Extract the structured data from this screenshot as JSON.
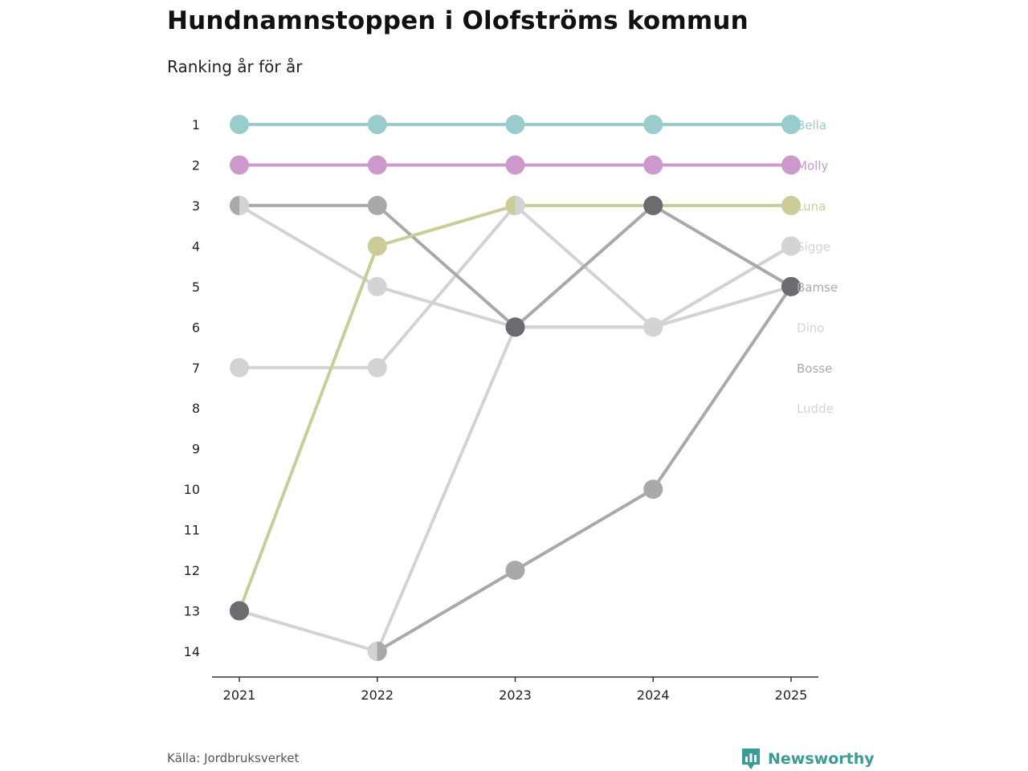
{
  "header": {
    "title": "Hundnamnstoppen i Olofströms kommun",
    "subtitle": "Ranking år för år"
  },
  "footer": {
    "source": "Källa: Jordbruksverket",
    "brand": "Newsworthy",
    "brand_icon": "newsworthy-logo-icon",
    "brand_color": "#3a9b97"
  },
  "chart_data": {
    "type": "line",
    "title": "Hundnamnstoppen i Olofströms kommun",
    "subtitle": "Ranking år för år",
    "xlabel": "",
    "ylabel": "",
    "x": [
      "2021",
      "2022",
      "2023",
      "2024",
      "2025"
    ],
    "y_ticks": [
      1,
      2,
      3,
      4,
      5,
      6,
      7,
      8,
      9,
      10,
      11,
      12,
      13,
      14
    ],
    "ylim": [
      14,
      1
    ],
    "y_inverted": true,
    "grid": false,
    "legend": "direct labels at right end of lines",
    "series": [
      {
        "name": "Ludde",
        "values": [
          3,
          5,
          6,
          6,
          4
        ],
        "color": "#d3d3d3"
      },
      {
        "name": "Dino",
        "values": [
          7,
          7,
          3,
          6,
          5
        ],
        "color": "#d3d3d3"
      },
      {
        "name": "Sigge",
        "values": [
          13,
          14,
          6,
          6,
          4
        ],
        "color": "#d3d3d3"
      },
      {
        "name": "Bosse",
        "values": [
          null,
          14,
          12,
          10,
          5
        ],
        "color": "#a9a9aa"
      },
      {
        "name": "Bamse",
        "values": [
          3,
          3,
          6,
          3,
          5
        ],
        "color": "#a9a9aa"
      },
      {
        "name": "Luna",
        "values": [
          13,
          4,
          3,
          3,
          3
        ],
        "color": "#cccc99"
      },
      {
        "name": "Molly",
        "values": [
          2,
          2,
          2,
          2,
          2
        ],
        "color": "#cc99cc"
      },
      {
        "name": "Bella",
        "values": [
          1,
          1,
          1,
          1,
          1
        ],
        "color": "#99cccc"
      }
    ],
    "end_labels": [
      {
        "name": "Bella",
        "rank": 1,
        "color": "#99cccc"
      },
      {
        "name": "Molly",
        "rank": 2,
        "color": "#cc99cc"
      },
      {
        "name": "Luna",
        "rank": 3,
        "color": "#cccc99"
      },
      {
        "name": "Sigge",
        "rank": 4,
        "color": "#d3d3d3"
      },
      {
        "name": "Bamse",
        "rank": 5,
        "color": "#a9a9aa"
      },
      {
        "name": "Dino",
        "rank": 6,
        "color": "#d3d3d3"
      },
      {
        "name": "Bosse",
        "rank": 7,
        "color": "#a9a9aa"
      },
      {
        "name": "Ludde",
        "rank": 8,
        "color": "#d3d3d3"
      }
    ],
    "extra_points": [
      {
        "year": "2021",
        "rank": 3,
        "colors": [
          "#a9a9aa",
          "#d3d3d3"
        ],
        "split": true
      },
      {
        "year": "2021",
        "rank": 13,
        "colors": [
          "#6b6b70"
        ]
      },
      {
        "year": "2022",
        "rank": 14,
        "colors": [
          "#d3d3d3",
          "#a9a9aa"
        ],
        "split": true
      },
      {
        "year": "2023",
        "rank": 3,
        "colors": [
          "#cccc99",
          "#d3d3d3"
        ],
        "split": true
      },
      {
        "year": "2023",
        "rank": 6,
        "colors": [
          "#6b6b70"
        ]
      },
      {
        "year": "2024",
        "rank": 3,
        "colors": [
          "#6b6b70"
        ]
      },
      {
        "year": "2025",
        "rank": 5,
        "colors": [
          "#6b6b70"
        ]
      }
    ]
  }
}
